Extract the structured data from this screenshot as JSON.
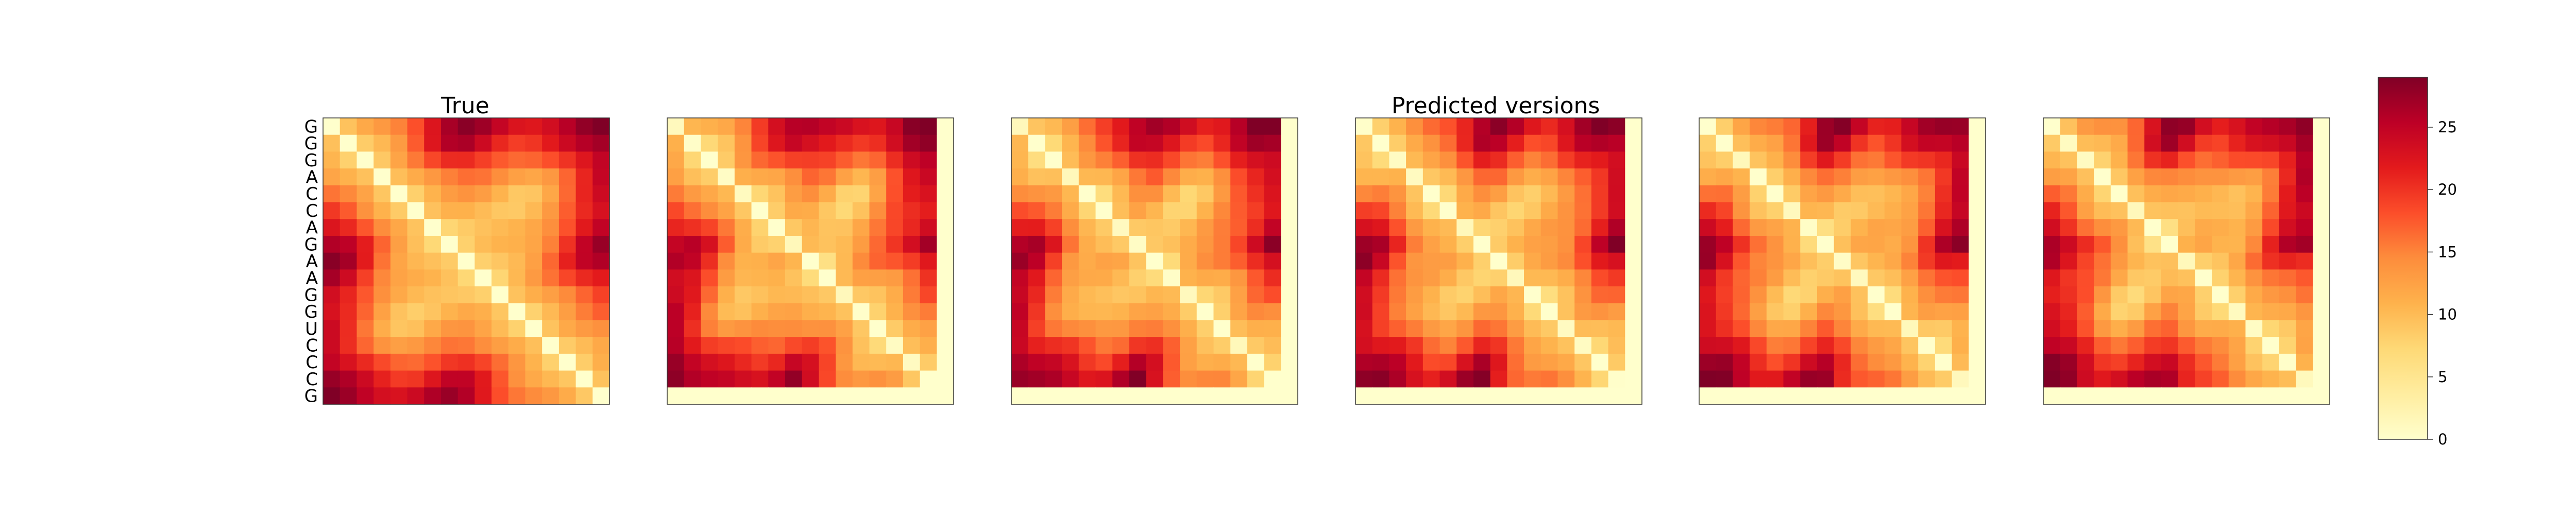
{
  "chart_data": {
    "type": "heatmap",
    "titles": {
      "left": "True",
      "center": "Predicted versions"
    },
    "sequence": [
      "G",
      "G",
      "G",
      "A",
      "C",
      "C",
      "A",
      "G",
      "A",
      "A",
      "G",
      "G",
      "U",
      "C",
      "C",
      "C",
      "G"
    ],
    "panels": [
      {
        "id": "true",
        "padded": false
      },
      {
        "id": "predicted-1",
        "padded": true
      },
      {
        "id": "predicted-2",
        "padded": true
      },
      {
        "id": "predicted-3",
        "padded": true
      },
      {
        "id": "predicted-4",
        "padded": true
      },
      {
        "id": "predicted-5",
        "padded": true
      }
    ],
    "colorbar": {
      "min": 0,
      "max": 29,
      "ticks": [
        0,
        5,
        10,
        15,
        20,
        25
      ],
      "tick_labels": [
        "0",
        "5",
        "10",
        "15",
        "20",
        "25"
      ],
      "colormap": "YlOrRd"
    }
  }
}
